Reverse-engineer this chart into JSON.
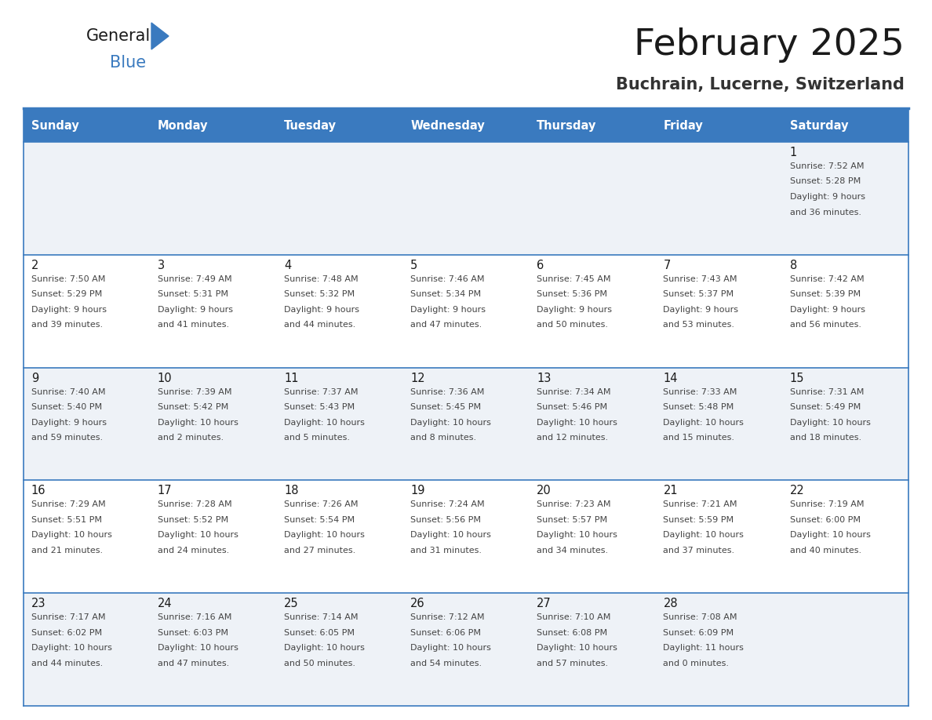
{
  "title": "February 2025",
  "subtitle": "Buchrain, Lucerne, Switzerland",
  "header_bg": "#3a7abf",
  "header_text": "#ffffff",
  "day_names": [
    "Sunday",
    "Monday",
    "Tuesday",
    "Wednesday",
    "Thursday",
    "Friday",
    "Saturday"
  ],
  "row_bg_light": "#eef2f7",
  "row_bg_white": "#ffffff",
  "cell_text_color": "#444444",
  "date_color": "#1a1a1a",
  "line_color": "#3a7abf",
  "calendar_data": [
    [
      {
        "day": null,
        "sunrise": null,
        "sunset": null,
        "daylight": null
      },
      {
        "day": null,
        "sunrise": null,
        "sunset": null,
        "daylight": null
      },
      {
        "day": null,
        "sunrise": null,
        "sunset": null,
        "daylight": null
      },
      {
        "day": null,
        "sunrise": null,
        "sunset": null,
        "daylight": null
      },
      {
        "day": null,
        "sunrise": null,
        "sunset": null,
        "daylight": null
      },
      {
        "day": null,
        "sunrise": null,
        "sunset": null,
        "daylight": null
      },
      {
        "day": 1,
        "sunrise": "7:52 AM",
        "sunset": "5:28 PM",
        "daylight": "9 hours",
        "daylight2": "and 36 minutes."
      }
    ],
    [
      {
        "day": 2,
        "sunrise": "7:50 AM",
        "sunset": "5:29 PM",
        "daylight": "9 hours",
        "daylight2": "and 39 minutes."
      },
      {
        "day": 3,
        "sunrise": "7:49 AM",
        "sunset": "5:31 PM",
        "daylight": "9 hours",
        "daylight2": "and 41 minutes."
      },
      {
        "day": 4,
        "sunrise": "7:48 AM",
        "sunset": "5:32 PM",
        "daylight": "9 hours",
        "daylight2": "and 44 minutes."
      },
      {
        "day": 5,
        "sunrise": "7:46 AM",
        "sunset": "5:34 PM",
        "daylight": "9 hours",
        "daylight2": "and 47 minutes."
      },
      {
        "day": 6,
        "sunrise": "7:45 AM",
        "sunset": "5:36 PM",
        "daylight": "9 hours",
        "daylight2": "and 50 minutes."
      },
      {
        "day": 7,
        "sunrise": "7:43 AM",
        "sunset": "5:37 PM",
        "daylight": "9 hours",
        "daylight2": "and 53 minutes."
      },
      {
        "day": 8,
        "sunrise": "7:42 AM",
        "sunset": "5:39 PM",
        "daylight": "9 hours",
        "daylight2": "and 56 minutes."
      }
    ],
    [
      {
        "day": 9,
        "sunrise": "7:40 AM",
        "sunset": "5:40 PM",
        "daylight": "9 hours",
        "daylight2": "and 59 minutes."
      },
      {
        "day": 10,
        "sunrise": "7:39 AM",
        "sunset": "5:42 PM",
        "daylight": "10 hours",
        "daylight2": "and 2 minutes."
      },
      {
        "day": 11,
        "sunrise": "7:37 AM",
        "sunset": "5:43 PM",
        "daylight": "10 hours",
        "daylight2": "and 5 minutes."
      },
      {
        "day": 12,
        "sunrise": "7:36 AM",
        "sunset": "5:45 PM",
        "daylight": "10 hours",
        "daylight2": "and 8 minutes."
      },
      {
        "day": 13,
        "sunrise": "7:34 AM",
        "sunset": "5:46 PM",
        "daylight": "10 hours",
        "daylight2": "and 12 minutes."
      },
      {
        "day": 14,
        "sunrise": "7:33 AM",
        "sunset": "5:48 PM",
        "daylight": "10 hours",
        "daylight2": "and 15 minutes."
      },
      {
        "day": 15,
        "sunrise": "7:31 AM",
        "sunset": "5:49 PM",
        "daylight": "10 hours",
        "daylight2": "and 18 minutes."
      }
    ],
    [
      {
        "day": 16,
        "sunrise": "7:29 AM",
        "sunset": "5:51 PM",
        "daylight": "10 hours",
        "daylight2": "and 21 minutes."
      },
      {
        "day": 17,
        "sunrise": "7:28 AM",
        "sunset": "5:52 PM",
        "daylight": "10 hours",
        "daylight2": "and 24 minutes."
      },
      {
        "day": 18,
        "sunrise": "7:26 AM",
        "sunset": "5:54 PM",
        "daylight": "10 hours",
        "daylight2": "and 27 minutes."
      },
      {
        "day": 19,
        "sunrise": "7:24 AM",
        "sunset": "5:56 PM",
        "daylight": "10 hours",
        "daylight2": "and 31 minutes."
      },
      {
        "day": 20,
        "sunrise": "7:23 AM",
        "sunset": "5:57 PM",
        "daylight": "10 hours",
        "daylight2": "and 34 minutes."
      },
      {
        "day": 21,
        "sunrise": "7:21 AM",
        "sunset": "5:59 PM",
        "daylight": "10 hours",
        "daylight2": "and 37 minutes."
      },
      {
        "day": 22,
        "sunrise": "7:19 AM",
        "sunset": "6:00 PM",
        "daylight": "10 hours",
        "daylight2": "and 40 minutes."
      }
    ],
    [
      {
        "day": 23,
        "sunrise": "7:17 AM",
        "sunset": "6:02 PM",
        "daylight": "10 hours",
        "daylight2": "and 44 minutes."
      },
      {
        "day": 24,
        "sunrise": "7:16 AM",
        "sunset": "6:03 PM",
        "daylight": "10 hours",
        "daylight2": "and 47 minutes."
      },
      {
        "day": 25,
        "sunrise": "7:14 AM",
        "sunset": "6:05 PM",
        "daylight": "10 hours",
        "daylight2": "and 50 minutes."
      },
      {
        "day": 26,
        "sunrise": "7:12 AM",
        "sunset": "6:06 PM",
        "daylight": "10 hours",
        "daylight2": "and 54 minutes."
      },
      {
        "day": 27,
        "sunrise": "7:10 AM",
        "sunset": "6:08 PM",
        "daylight": "10 hours",
        "daylight2": "and 57 minutes."
      },
      {
        "day": 28,
        "sunrise": "7:08 AM",
        "sunset": "6:09 PM",
        "daylight": "11 hours",
        "daylight2": "and 0 minutes."
      },
      {
        "day": null,
        "sunrise": null,
        "sunset": null,
        "daylight": null,
        "daylight2": null
      }
    ]
  ]
}
